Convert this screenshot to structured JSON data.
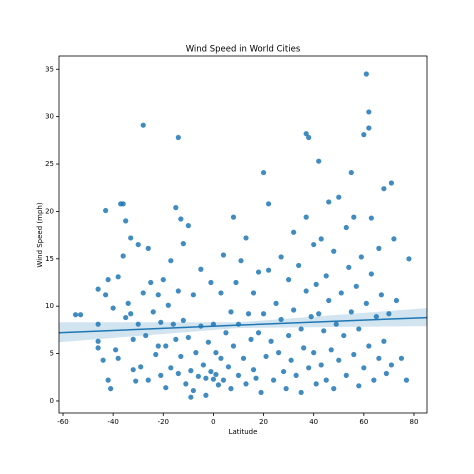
{
  "chart_data": {
    "type": "scatter",
    "title": "Wind Speed in World Cities",
    "x_label": "Latitude",
    "y_label": "Wind Speed (mph)",
    "color": "#1f77b4",
    "xlim": [
      -61.6,
      85.2
    ],
    "ylim": [
      -1.27,
      36.4
    ],
    "xticks": [
      -60,
      -40,
      -20,
      0,
      20,
      40,
      60,
      80
    ],
    "yticks": [
      0,
      5,
      10,
      15,
      20,
      25,
      30,
      35
    ],
    "x": [
      -55,
      -53,
      -46,
      -46,
      -46,
      -46,
      -44,
      -43,
      -43,
      -42,
      -42,
      -41,
      -40,
      -39,
      -38,
      -38,
      -37,
      -36,
      -36,
      -35,
      -35,
      -34,
      -33,
      -33,
      -32,
      -32,
      -31,
      -30,
      -30,
      -29,
      -28,
      -28,
      -27,
      -26,
      -26,
      -25,
      -24,
      -23,
      -22,
      -22,
      -21,
      -21,
      -20,
      -19,
      -19,
      -18,
      -17,
      -17,
      -16,
      -15,
      -15,
      -14,
      -14,
      -14,
      -13,
      -13,
      -12,
      -12,
      -11,
      -10,
      -10,
      -9,
      -9,
      -8,
      -8,
      -7,
      -6,
      -5,
      -5,
      -4,
      -3,
      -3,
      -2,
      -1,
      -1,
      0,
      0,
      1,
      1,
      2,
      3,
      3,
      4,
      4,
      5,
      6,
      7,
      7,
      8,
      8,
      9,
      10,
      10,
      11,
      12,
      13,
      13,
      14,
      15,
      16,
      16,
      17,
      18,
      18,
      19,
      20,
      20,
      21,
      22,
      22,
      23,
      24,
      25,
      26,
      27,
      27,
      28,
      29,
      30,
      30,
      31,
      32,
      32,
      33,
      34,
      35,
      35,
      36,
      37,
      37,
      37,
      38,
      38,
      39,
      40,
      40,
      41,
      41,
      42,
      42,
      43,
      43,
      44,
      45,
      45,
      46,
      46,
      47,
      48,
      48,
      49,
      50,
      50,
      51,
      52,
      53,
      53,
      54,
      55,
      55,
      56,
      56,
      57,
      58,
      58,
      59,
      60,
      60,
      61,
      61,
      62,
      62,
      62,
      63,
      63,
      64,
      65,
      66,
      66,
      67,
      68,
      68,
      69,
      70,
      71,
      71,
      72,
      73,
      75,
      77,
      78
    ],
    "values": [
      9.1,
      9.1,
      11.8,
      8.1,
      6.3,
      5.6,
      4.3,
      11.2,
      20.1,
      12.8,
      2.2,
      1.3,
      9.8,
      5.4,
      13.1,
      4.5,
      20.8,
      20.8,
      15.3,
      19,
      8.8,
      10.3,
      17.2,
      9.2,
      6.5,
      3.3,
      2.1,
      16.5,
      8.1,
      3.6,
      29.1,
      11.4,
      6.9,
      16.1,
      2.2,
      12.5,
      9.4,
      4.9,
      11.2,
      5.8,
      8.3,
      2.7,
      12.8,
      5.8,
      1.4,
      10.1,
      14.8,
      3.5,
      8.1,
      20.4,
      6.5,
      27.8,
      11.6,
      2.9,
      19.2,
      4.7,
      16.6,
      8.5,
      1.8,
      18.5,
      6.7,
      3.2,
      0.4,
      11.2,
      1.1,
      5.1,
      2.6,
      13.9,
      7.9,
      3.8,
      2.4,
      0.6,
      6.2,
      12.5,
      3.1,
      2.3,
      8.1,
      5.1,
      2.8,
      1.7,
      11.4,
      4.5,
      15.4,
      2.2,
      7.2,
      3.6,
      9.4,
      1.3,
      19.4,
      5.8,
      12.5,
      8.1,
      2.7,
      14.8,
      4.5,
      17.2,
      1.8,
      9.2,
      6.5,
      11.4,
      3.3,
      2.4,
      13.6,
      7.2,
      0.9,
      24.1,
      9.2,
      4.7,
      20.8,
      13.8,
      6.3,
      2.2,
      10.3,
      5.1,
      15.2,
      8.6,
      3.1,
      1.3,
      12.8,
      6.9,
      4.3,
      17.8,
      9.6,
      2.7,
      14.3,
      7.6,
      0.9,
      5.6,
      28.2,
      19.4,
      11.6,
      27.8,
      3.5,
      8.9,
      16.5,
      5.1,
      12.3,
      1.8,
      25.3,
      9.2,
      17.1,
      3.8,
      7.4,
      13.2,
      2.2,
      21.0,
      10.6,
      5.4,
      15.8,
      1.3,
      8.1,
      21.5,
      4.3,
      11.4,
      6.9,
      18.3,
      2.7,
      14.1,
      24.1,
      9.4,
      19.4,
      4.9,
      12.1,
      7.6,
      1.6,
      15.2,
      28.1,
      3.5,
      34.5,
      10.3,
      30.5,
      28.8,
      5.8,
      19.3,
      13.4,
      2.2,
      8.9,
      16.1,
      4.5,
      11.2,
      22.4,
      6.3,
      2.9,
      9.2,
      23.0,
      3.8,
      17.1,
      10.6,
      4.5,
      2.2,
      15.0
    ],
    "fit": {
      "x": [
        -61.6,
        10,
        85.2
      ],
      "values": [
        7.2,
        8.0,
        8.8
      ],
      "lower": [
        6.2,
        7.7,
        7.9
      ],
      "upper": [
        8.3,
        8.3,
        9.8
      ]
    }
  }
}
